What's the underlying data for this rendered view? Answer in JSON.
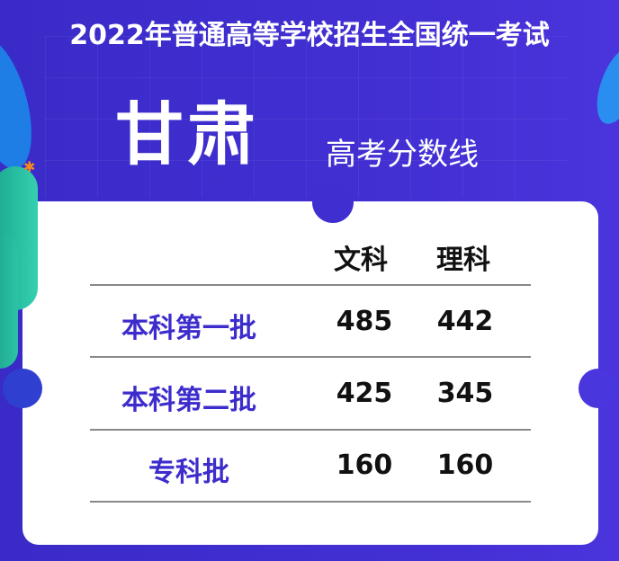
{
  "title": "2022年普通高等学校招生全国统一考试",
  "province": "甘肃",
  "subtitle": "高考分数线",
  "table": {
    "headers": [
      "文科",
      "理科"
    ],
    "rows": [
      {
        "label": "本科第一批",
        "wenke": "485",
        "like": "442"
      },
      {
        "label": "本科第二批",
        "wenke": "425",
        "like": "345"
      },
      {
        "label": "专科批",
        "wenke": "160",
        "like": "160"
      }
    ]
  },
  "colors": {
    "background": "#3d2ccc",
    "label": "#3d2ccc",
    "card": "#ffffff"
  }
}
